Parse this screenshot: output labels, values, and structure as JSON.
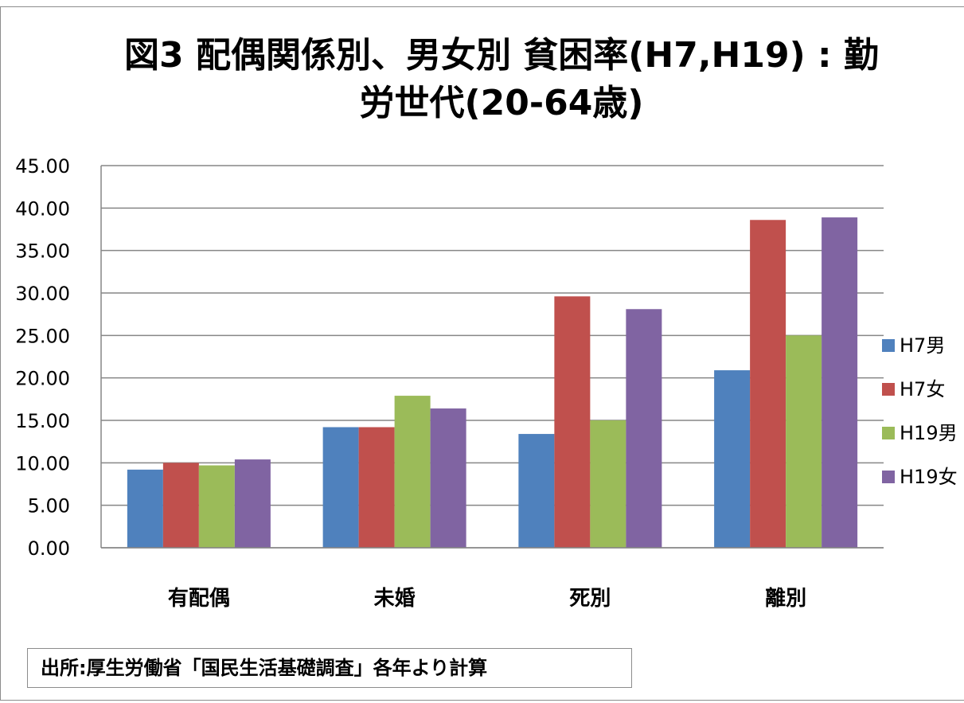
{
  "chart_data": {
    "type": "bar",
    "title_line1": "図3 配偶関係別、男女別 貧困率(H7,H19) : 勤",
    "title_line2": "労世代(20-64歳)",
    "categories": [
      "有配偶",
      "未婚",
      "死別",
      "離別"
    ],
    "yticks": [
      "0.00",
      "5.00",
      "10.00",
      "15.00",
      "20.00",
      "25.00",
      "30.00",
      "35.00",
      "40.00",
      "45.00"
    ],
    "ylim": [
      0,
      45
    ],
    "grid": true,
    "legend_position": "right",
    "series": [
      {
        "name": "H7男",
        "color": "#4f81bd",
        "values": [
          9.2,
          14.2,
          13.4,
          20.9
        ]
      },
      {
        "name": "H7女",
        "color": "#c0504d",
        "values": [
          10.0,
          14.2,
          29.6,
          38.6
        ]
      },
      {
        "name": "H19男",
        "color": "#9bbb59",
        "values": [
          9.7,
          17.9,
          15.0,
          25.0
        ]
      },
      {
        "name": "H19女",
        "color": "#8064a2",
        "values": [
          10.4,
          16.4,
          28.1,
          38.9
        ]
      }
    ]
  },
  "source_note": "出所:厚生労働省「国民生活基礎調査」各年より計算"
}
